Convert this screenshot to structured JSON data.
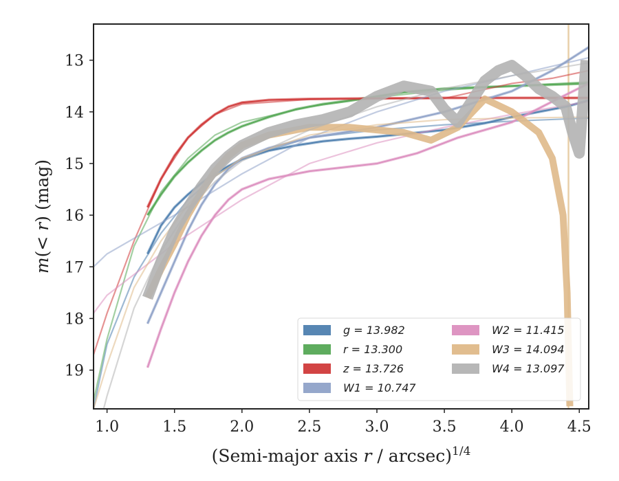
{
  "chart_data": {
    "type": "line",
    "xlabel": "(Semi-major axis r / arcsec)^1/4",
    "ylabel": "m(< r) (mag)",
    "xlim": [
      0.9,
      4.57
    ],
    "ylim": [
      19.75,
      12.3
    ],
    "y_inverted": true,
    "xticks": [
      "1.0",
      "1.5",
      "2.0",
      "2.5",
      "3.0",
      "3.5",
      "4.0",
      "4.5"
    ],
    "yticks": [
      "13",
      "14",
      "15",
      "16",
      "17",
      "18",
      "19"
    ],
    "legend_position": "lower-right",
    "vline": {
      "x": 4.42,
      "color": "#e8cfa9"
    },
    "series": [
      {
        "name": "g = 13.982",
        "legend": "g = 13.982",
        "color": "#4e7faf",
        "kind": "band",
        "data": [
          [
            1.3,
            16.75
          ],
          [
            1.4,
            16.2
          ],
          [
            1.5,
            15.85
          ],
          [
            1.6,
            15.6
          ],
          [
            1.7,
            15.38
          ],
          [
            1.8,
            15.2
          ],
          [
            1.9,
            15.05
          ],
          [
            2.0,
            14.92
          ],
          [
            2.2,
            14.75
          ],
          [
            2.4,
            14.65
          ],
          [
            2.6,
            14.57
          ],
          [
            2.8,
            14.52
          ],
          [
            3.0,
            14.48
          ],
          [
            3.2,
            14.43
          ],
          [
            3.5,
            14.35
          ],
          [
            3.8,
            14.22
          ],
          [
            4.0,
            14.1
          ],
          [
            4.2,
            14.0
          ],
          [
            4.4,
            13.9
          ],
          [
            4.57,
            13.78
          ]
        ],
        "fit": [
          [
            0.9,
            19.75
          ],
          [
            1.0,
            18.5
          ],
          [
            1.2,
            17.2
          ],
          [
            1.4,
            16.35
          ],
          [
            1.6,
            15.7
          ],
          [
            1.8,
            15.25
          ],
          [
            2.0,
            14.9
          ],
          [
            2.5,
            14.5
          ],
          [
            3.0,
            14.35
          ],
          [
            3.5,
            14.25
          ],
          [
            4.0,
            14.18
          ],
          [
            4.57,
            14.12
          ]
        ]
      },
      {
        "name": "r = 13.300",
        "legend": "r = 13.300",
        "color": "#55a855",
        "kind": "band",
        "data": [
          [
            1.3,
            16.0
          ],
          [
            1.4,
            15.6
          ],
          [
            1.5,
            15.25
          ],
          [
            1.6,
            14.98
          ],
          [
            1.7,
            14.75
          ],
          [
            1.8,
            14.55
          ],
          [
            1.9,
            14.4
          ],
          [
            2.0,
            14.28
          ],
          [
            2.2,
            14.1
          ],
          [
            2.4,
            13.95
          ],
          [
            2.6,
            13.85
          ],
          [
            2.8,
            13.78
          ],
          [
            3.0,
            13.7
          ],
          [
            3.2,
            13.62
          ],
          [
            3.5,
            13.55
          ],
          [
            4.0,
            13.5
          ],
          [
            4.57,
            13.45
          ]
        ],
        "fit": [
          [
            0.9,
            19.6
          ],
          [
            1.0,
            18.4
          ],
          [
            1.2,
            16.6
          ],
          [
            1.4,
            15.55
          ],
          [
            1.6,
            14.9
          ],
          [
            1.8,
            14.45
          ],
          [
            2.0,
            14.2
          ],
          [
            2.5,
            13.9
          ],
          [
            3.0,
            13.72
          ],
          [
            3.5,
            13.58
          ],
          [
            4.0,
            13.5
          ],
          [
            4.57,
            13.42
          ]
        ]
      },
      {
        "name": "z = 13.726",
        "legend": "z = 13.726",
        "color": "#d03a3a",
        "kind": "band",
        "data": [
          [
            1.3,
            15.85
          ],
          [
            1.4,
            15.3
          ],
          [
            1.5,
            14.85
          ],
          [
            1.6,
            14.5
          ],
          [
            1.7,
            14.25
          ],
          [
            1.8,
            14.05
          ],
          [
            1.9,
            13.9
          ],
          [
            2.0,
            13.82
          ],
          [
            2.2,
            13.77
          ],
          [
            2.5,
            13.75
          ],
          [
            3.0,
            13.74
          ],
          [
            3.5,
            13.73
          ],
          [
            4.0,
            13.73
          ],
          [
            4.57,
            13.73
          ]
        ],
        "fit": [
          [
            0.9,
            18.7
          ],
          [
            1.0,
            17.9
          ],
          [
            1.2,
            16.5
          ],
          [
            1.4,
            15.3
          ],
          [
            1.6,
            14.5
          ],
          [
            1.8,
            14.05
          ],
          [
            2.0,
            13.85
          ],
          [
            2.5,
            13.76
          ],
          [
            3.0,
            13.74
          ],
          [
            3.5,
            13.74
          ],
          [
            4.0,
            13.45
          ],
          [
            4.3,
            13.35
          ],
          [
            4.57,
            13.2
          ]
        ]
      },
      {
        "name": "W1 = 10.747",
        "legend": "W1 = 10.747",
        "color": "#8fa2c8",
        "kind": "band",
        "data": [
          [
            1.3,
            18.1
          ],
          [
            1.4,
            17.5
          ],
          [
            1.5,
            16.9
          ],
          [
            1.6,
            16.3
          ],
          [
            1.7,
            15.8
          ],
          [
            1.8,
            15.4
          ],
          [
            1.9,
            15.1
          ],
          [
            2.0,
            14.9
          ],
          [
            2.2,
            14.7
          ],
          [
            2.5,
            14.5
          ],
          [
            3.0,
            14.3
          ],
          [
            3.5,
            14.0
          ],
          [
            4.0,
            13.6
          ],
          [
            4.3,
            13.2
          ],
          [
            4.57,
            12.75
          ]
        ],
        "fit": [
          [
            0.9,
            17.0
          ],
          [
            1.0,
            16.75
          ],
          [
            1.5,
            16.0
          ],
          [
            2.0,
            15.2
          ],
          [
            2.5,
            14.5
          ],
          [
            3.0,
            14.0
          ],
          [
            3.5,
            13.6
          ],
          [
            4.0,
            13.3
          ],
          [
            4.57,
            12.95
          ]
        ]
      },
      {
        "name": "W2 = 11.415",
        "legend": "W2 = 11.415",
        "color": "#dc8fbf",
        "kind": "band",
        "data": [
          [
            1.3,
            18.95
          ],
          [
            1.4,
            18.2
          ],
          [
            1.5,
            17.5
          ],
          [
            1.6,
            16.9
          ],
          [
            1.7,
            16.4
          ],
          [
            1.8,
            16.0
          ],
          [
            1.9,
            15.7
          ],
          [
            2.0,
            15.5
          ],
          [
            2.2,
            15.3
          ],
          [
            2.5,
            15.15
          ],
          [
            3.0,
            15.0
          ],
          [
            3.3,
            14.8
          ],
          [
            3.6,
            14.5
          ],
          [
            4.0,
            14.2
          ],
          [
            4.3,
            13.8
          ],
          [
            4.57,
            13.45
          ]
        ],
        "fit": [
          [
            0.9,
            17.9
          ],
          [
            1.0,
            17.55
          ],
          [
            1.5,
            16.55
          ],
          [
            2.0,
            15.7
          ],
          [
            2.5,
            15.0
          ],
          [
            3.0,
            14.6
          ],
          [
            3.5,
            14.3
          ],
          [
            4.0,
            14.05
          ],
          [
            4.57,
            13.8
          ]
        ]
      },
      {
        "name": "W3 = 14.094",
        "legend": "W3 = 14.094",
        "color": "#dfb989",
        "kind": "band",
        "data": [
          [
            1.3,
            17.6
          ],
          [
            1.4,
            17.05
          ],
          [
            1.5,
            16.55
          ],
          [
            1.6,
            16.0
          ],
          [
            1.7,
            15.55
          ],
          [
            1.8,
            15.15
          ],
          [
            1.9,
            14.85
          ],
          [
            2.0,
            14.65
          ],
          [
            2.2,
            14.45
          ],
          [
            2.5,
            14.3
          ],
          [
            2.8,
            14.3
          ],
          [
            3.0,
            14.35
          ],
          [
            3.2,
            14.4
          ],
          [
            3.4,
            14.55
          ],
          [
            3.6,
            14.3
          ],
          [
            3.8,
            13.75
          ],
          [
            4.0,
            14.0
          ],
          [
            4.2,
            14.4
          ],
          [
            4.3,
            14.9
          ],
          [
            4.38,
            16.0
          ],
          [
            4.41,
            17.5
          ],
          [
            4.43,
            19.7
          ]
        ],
        "fit": [
          [
            0.9,
            19.75
          ],
          [
            1.0,
            18.9
          ],
          [
            1.2,
            17.4
          ],
          [
            1.4,
            16.5
          ],
          [
            1.6,
            15.8
          ],
          [
            1.8,
            15.25
          ],
          [
            2.0,
            14.9
          ],
          [
            2.5,
            14.45
          ],
          [
            3.0,
            14.25
          ],
          [
            3.5,
            14.15
          ],
          [
            4.0,
            14.12
          ],
          [
            4.57,
            14.1
          ]
        ]
      },
      {
        "name": "W4 = 13.097",
        "legend": "W4 = 13.097",
        "color": "#b3b3b3",
        "kind": "band",
        "data": [
          [
            1.3,
            17.6
          ],
          [
            1.4,
            16.9
          ],
          [
            1.5,
            16.3
          ],
          [
            1.6,
            15.85
          ],
          [
            1.7,
            15.45
          ],
          [
            1.8,
            15.1
          ],
          [
            1.9,
            14.85
          ],
          [
            2.0,
            14.65
          ],
          [
            2.2,
            14.4
          ],
          [
            2.4,
            14.25
          ],
          [
            2.6,
            14.15
          ],
          [
            2.8,
            14.0
          ],
          [
            3.0,
            13.7
          ],
          [
            3.2,
            13.5
          ],
          [
            3.4,
            13.6
          ],
          [
            3.5,
            13.95
          ],
          [
            3.6,
            14.2
          ],
          [
            3.7,
            13.8
          ],
          [
            3.8,
            13.4
          ],
          [
            3.9,
            13.2
          ],
          [
            4.0,
            13.1
          ],
          [
            4.1,
            13.3
          ],
          [
            4.2,
            13.55
          ],
          [
            4.3,
            13.7
          ],
          [
            4.4,
            13.9
          ],
          [
            4.45,
            14.4
          ],
          [
            4.5,
            14.8
          ],
          [
            4.55,
            13.0
          ]
        ],
        "fit": [
          [
            0.9,
            20.5
          ],
          [
            1.0,
            19.5
          ],
          [
            1.2,
            17.8
          ],
          [
            1.4,
            16.7
          ],
          [
            1.6,
            15.9
          ],
          [
            1.8,
            15.35
          ],
          [
            2.0,
            14.95
          ],
          [
            2.5,
            14.35
          ],
          [
            3.0,
            13.9
          ],
          [
            3.5,
            13.55
          ],
          [
            4.0,
            13.3
          ],
          [
            4.57,
            13.05
          ]
        ]
      }
    ]
  }
}
